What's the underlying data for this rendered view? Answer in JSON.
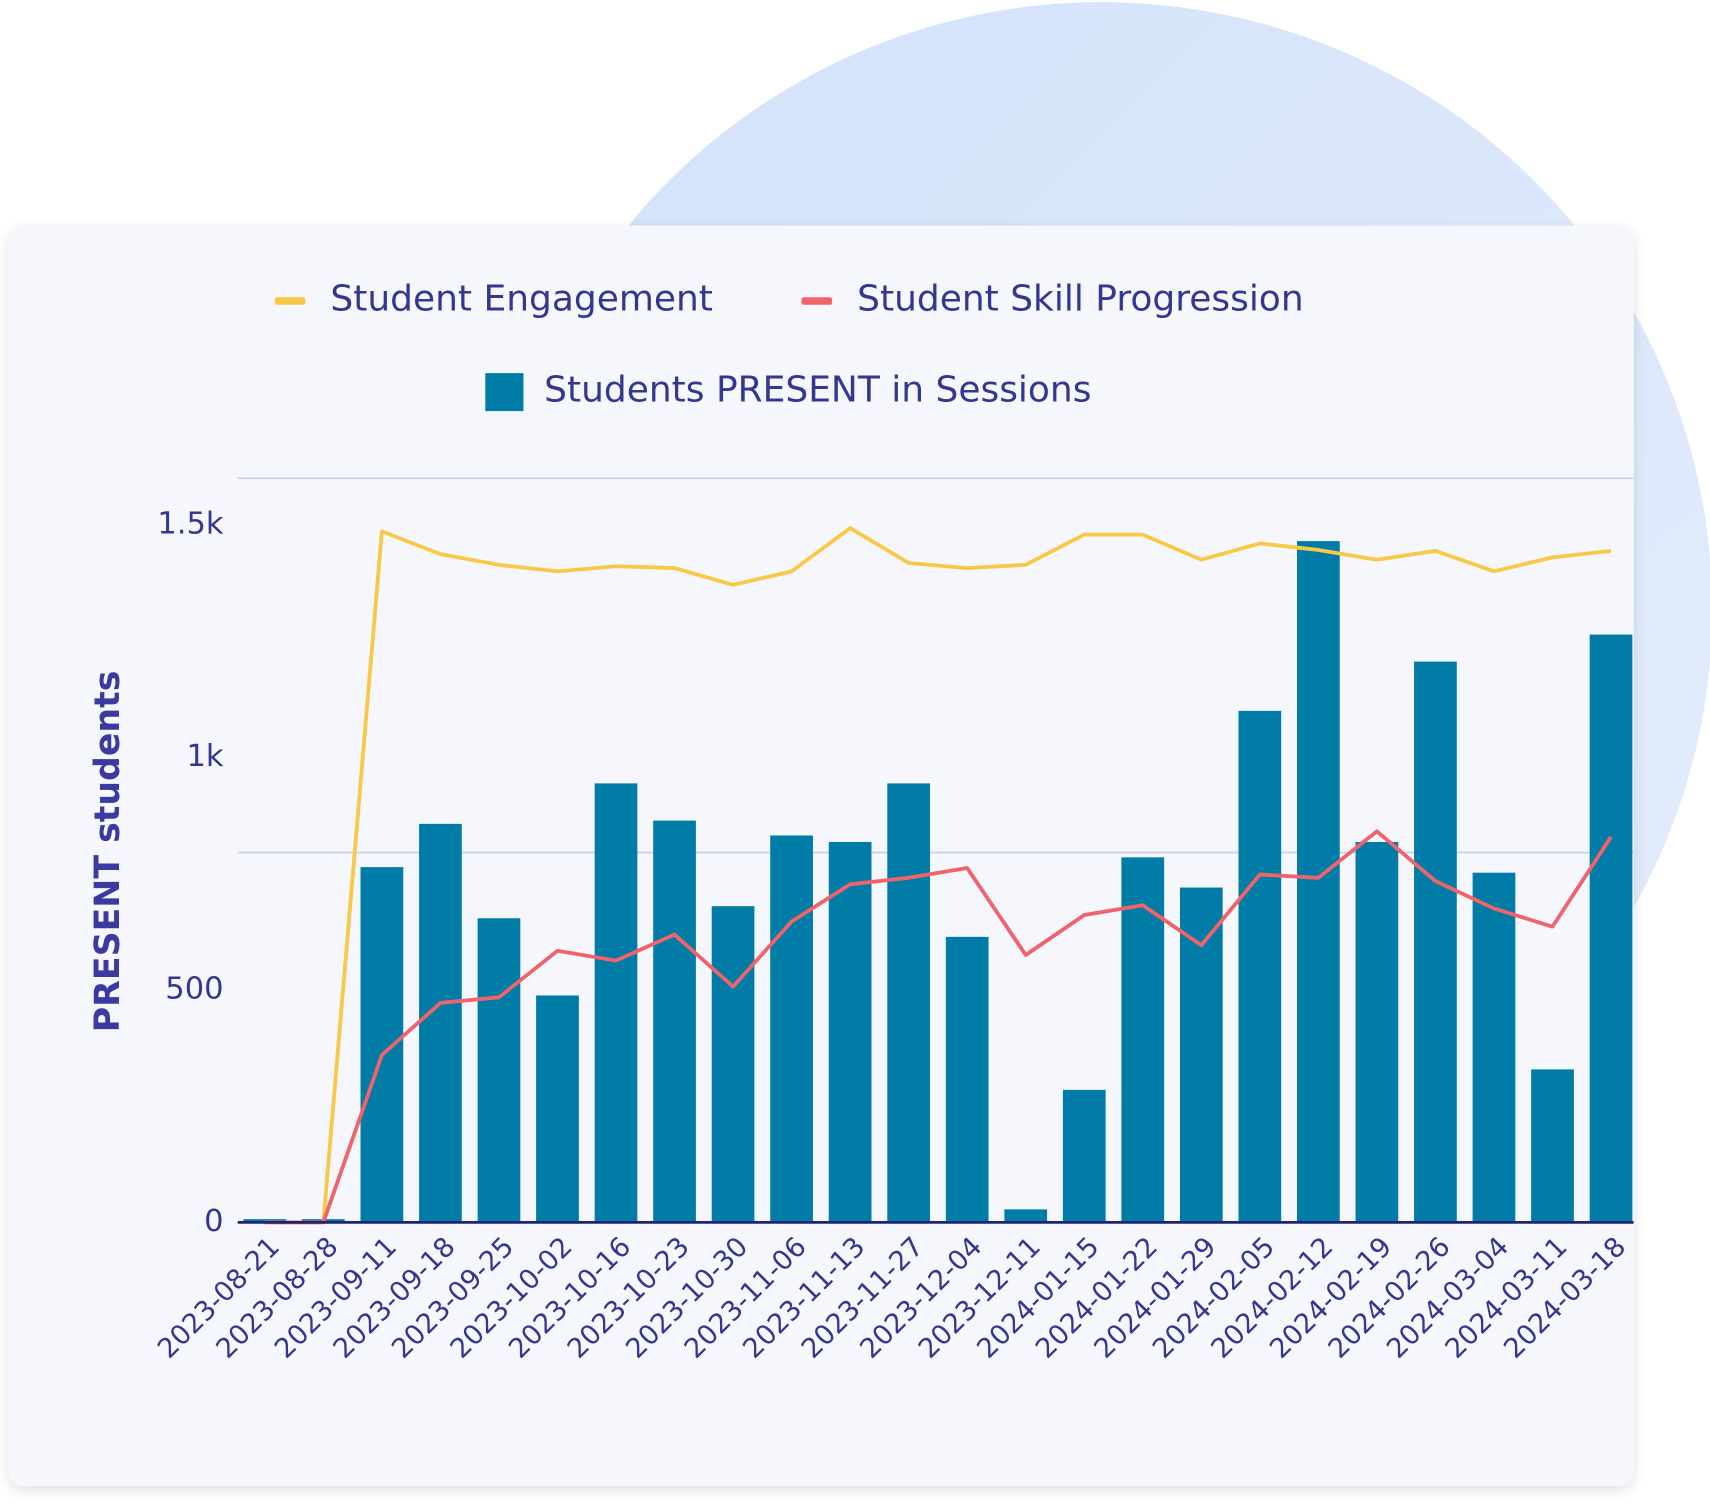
{
  "chart_data": {
    "type": "bar",
    "y_label": "PRESENT students",
    "categories": [
      "2023-08-21",
      "2023-08-28",
      "2023-09-11",
      "2023-09-18",
      "2023-09-25",
      "2023-10-02",
      "2023-10-16",
      "2023-10-23",
      "2023-10-30",
      "2023-11-06",
      "2023-11-13",
      "2023-11-27",
      "2023-12-04",
      "2023-12-11",
      "2024-01-15",
      "2024-01-22",
      "2024-01-29",
      "2024-02-05",
      "2024-02-12",
      "2024-02-19",
      "2024-02-26",
      "2024-03-04",
      "2024-03-11",
      "2024-03-18"
    ],
    "series": [
      {
        "name": "Student Engagement",
        "type": "line",
        "color": "#f9c846",
        "values": [
          0,
          0,
          1486,
          1437,
          1414,
          1400,
          1411,
          1407,
          1371,
          1400,
          1493,
          1418,
          1407,
          1414,
          1479,
          1479,
          1425,
          1460,
          1446,
          1425,
          1444,
          1400,
          1430,
          1444
        ]
      },
      {
        "name": "Student Skill Progression",
        "type": "line",
        "color": "#f0636a",
        "values": [
          0,
          0,
          360,
          472,
          484,
          584,
          563,
          619,
          507,
          647,
          727,
          741,
          762,
          575,
          661,
          682,
          596,
          748,
          741,
          841,
          734,
          675,
          636,
          829
        ]
      },
      {
        "name": "Students PRESENT in Sessions",
        "type": "bar",
        "color": "#007ca6",
        "values": [
          7,
          7,
          764,
          857,
          654,
          488,
          944,
          864,
          680,
          832,
          818,
          944,
          614,
          28,
          285,
          785,
          720,
          1100,
          1465,
          818,
          1206,
          752,
          329,
          1264
        ]
      }
    ],
    "ylim": [
      0,
      1600
    ],
    "yticks": [
      0,
      500,
      {
        "value": 1000,
        "label": "1k"
      },
      {
        "value": 1500,
        "label": "1.5k"
      }
    ]
  }
}
